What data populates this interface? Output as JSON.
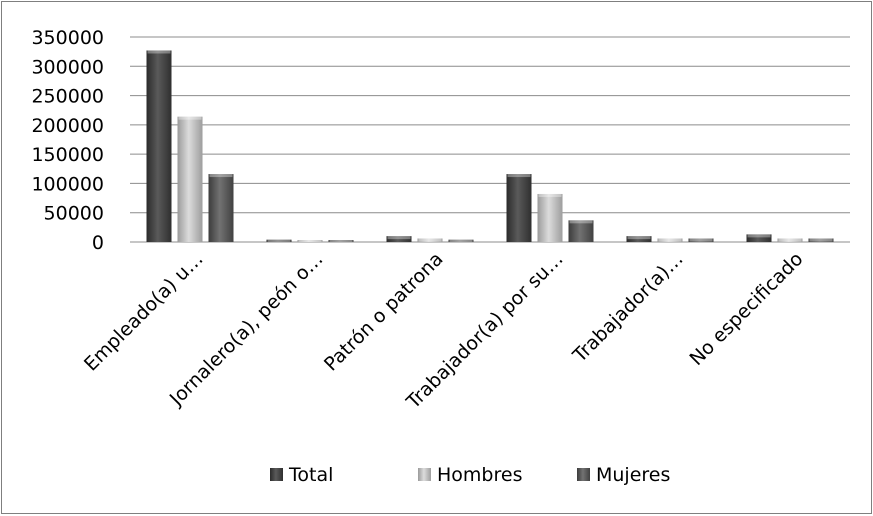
{
  "chart_data": {
    "type": "bar",
    "title": "",
    "xlabel": "",
    "ylabel": "",
    "ylim": [
      0,
      350000
    ],
    "yticks": [
      0,
      50000,
      100000,
      150000,
      200000,
      250000,
      300000,
      350000
    ],
    "ytick_labels": [
      "0",
      "50000",
      "100000",
      "150000",
      "200000",
      "250000",
      "300000",
      "350000"
    ],
    "grid": true,
    "style": "3d-bevel",
    "legend_position": "bottom",
    "categories": [
      "Empleado(a) u…",
      "Jornalero(a), peón o…",
      "Patrón o patrona",
      "Trabajador(a) por su…",
      "Trabajador(a)…",
      "No especificado"
    ],
    "series": [
      {
        "name": "Total",
        "color": "#4a4a4a",
        "values": [
          327000,
          4000,
          10000,
          116000,
          10000,
          13000
        ]
      },
      {
        "name": "Hombres",
        "color": "#b2b2b2",
        "values": [
          214000,
          3000,
          6000,
          82000,
          6000,
          6000
        ]
      },
      {
        "name": "Mujeres",
        "color": "#5e5e5e",
        "values": [
          116000,
          2000,
          4000,
          37000,
          6000,
          6000
        ]
      }
    ]
  }
}
